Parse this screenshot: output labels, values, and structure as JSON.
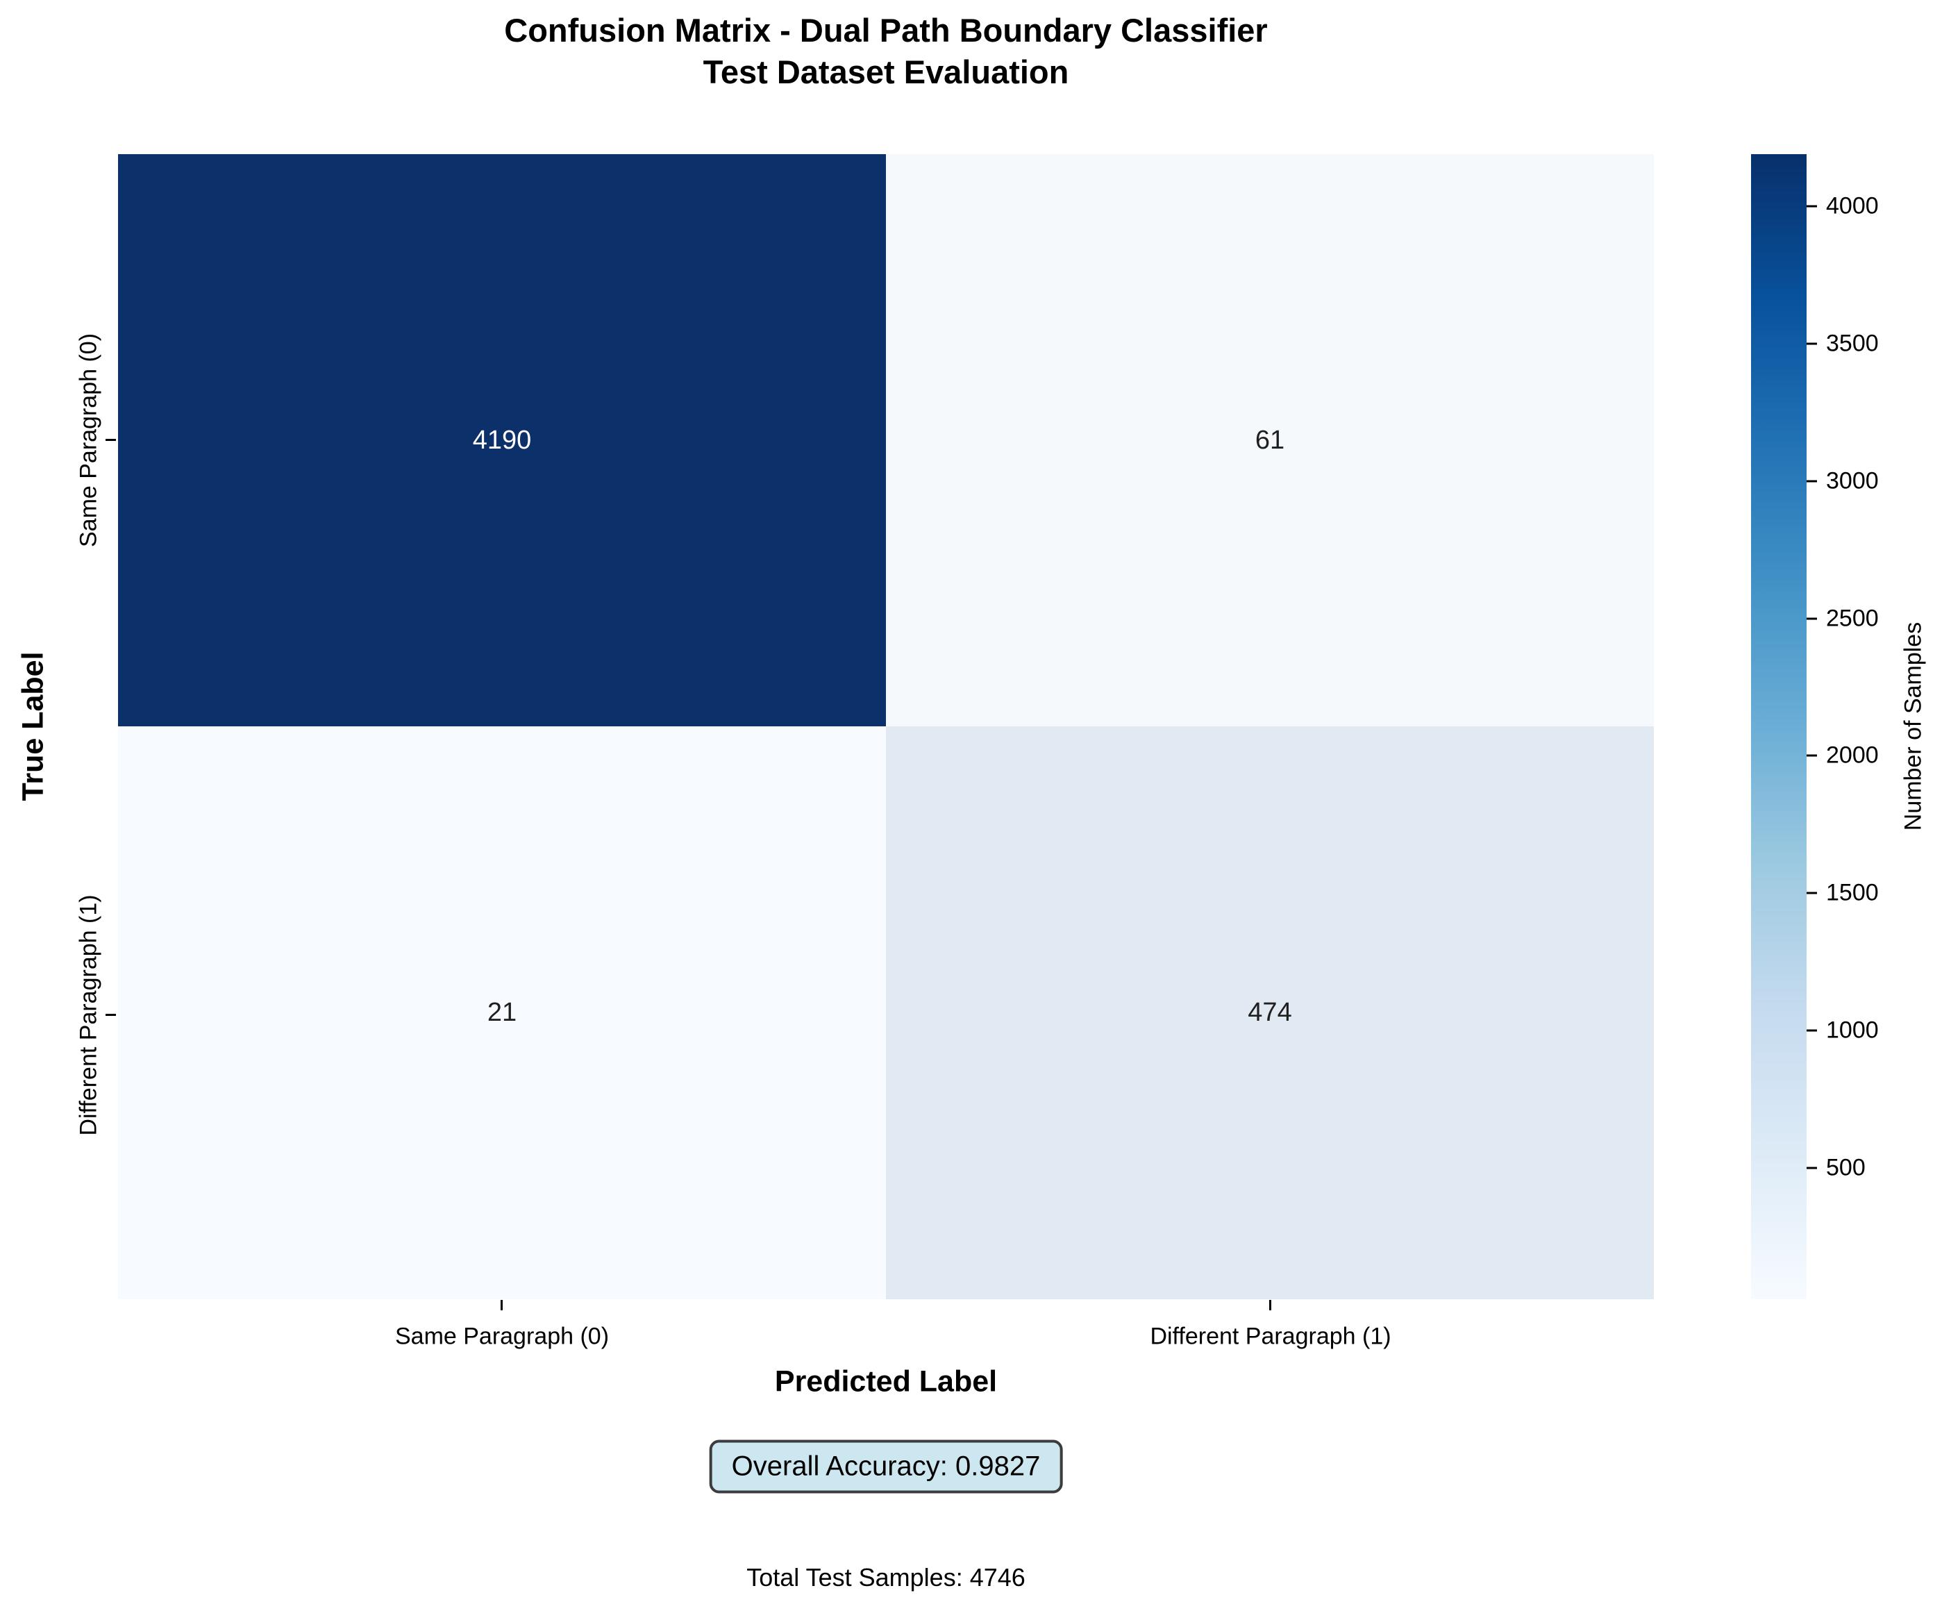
{
  "title": {
    "line1": "Confusion Matrix - Dual Path Boundary Classifier",
    "line2": "Test Dataset Evaluation"
  },
  "axes": {
    "y_label": "True Label",
    "x_label": "Predicted Label",
    "y_ticks": [
      "Same Paragraph (0)",
      "Different Paragraph (1)"
    ],
    "x_ticks": [
      "Same Paragraph (0)",
      "Different Paragraph (1)"
    ]
  },
  "cells": {
    "tl": {
      "value": "4190",
      "bg": "#0b306a",
      "fg": "#ffffff"
    },
    "tr": {
      "value": "61",
      "bg": "#f5f9fc",
      "fg": "#1f1f1f"
    },
    "bl": {
      "value": "21",
      "bg": "#f7fbff",
      "fg": "#1f1f1f"
    },
    "br": {
      "value": "474",
      "bg": "#e1eaf3",
      "fg": "#1f1f1f"
    }
  },
  "colorbar": {
    "label": "Number of Samples",
    "ticks": [
      {
        "value": "4000",
        "pos_pct": 4.56
      },
      {
        "value": "3500",
        "pos_pct": 16.55
      },
      {
        "value": "3000",
        "pos_pct": 28.54
      },
      {
        "value": "2500",
        "pos_pct": 40.54
      },
      {
        "value": "2000",
        "pos_pct": 52.53
      },
      {
        "value": "1500",
        "pos_pct": 64.52
      },
      {
        "value": "1000",
        "pos_pct": 76.52
      },
      {
        "value": "500",
        "pos_pct": 88.51
      }
    ],
    "gradient": [
      "#08306b",
      "#08519c",
      "#2171b5",
      "#4292c6",
      "#6baed6",
      "#9ecae1",
      "#c6dbef",
      "#deebf7",
      "#f7fbff"
    ]
  },
  "annotations": {
    "accuracy": "Overall Accuracy: 0.9827",
    "total": "Total Test Samples: 4746"
  },
  "colors": {
    "accuracy_bg": "#cde7f0",
    "accuracy_border": "#3c3c3c",
    "cmap_max": "#08306b",
    "cmap_min": "#f7fbff"
  },
  "chart_data": {
    "type": "heatmap",
    "title": "Confusion Matrix - Dual Path Boundary Classifier\nTest Dataset Evaluation",
    "xlabel": "Predicted Label",
    "ylabel": "True Label",
    "x_categories": [
      "Same Paragraph (0)",
      "Different Paragraph (1)"
    ],
    "y_categories": [
      "Same Paragraph (0)",
      "Different Paragraph (1)"
    ],
    "values": [
      [
        4190,
        61
      ],
      [
        21,
        474
      ]
    ],
    "vmin": 21,
    "vmax": 4190,
    "colormap": "Blues",
    "colorbar_label": "Number of Samples",
    "colorbar_ticks": [
      500,
      1000,
      1500,
      2000,
      2500,
      3000,
      3500,
      4000
    ],
    "grid": false,
    "annotations": [
      "Overall Accuracy: 0.9827",
      "Total Test Samples: 4746"
    ]
  }
}
